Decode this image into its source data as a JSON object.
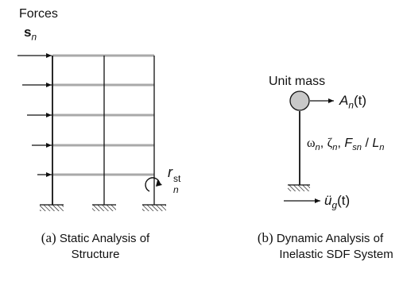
{
  "left": {
    "forces_label": "Forces",
    "force_symbol": "s",
    "force_subscript": "n",
    "response_symbol": "r",
    "response_subscript": "n",
    "response_superscript": "st"
  },
  "right": {
    "unit_mass_label": "Unit mass",
    "response_symbol": "A",
    "response_subscript": "n",
    "response_arg": "(t)",
    "props_label": "ω",
    "props_sub": "n",
    "zeta": "ζ",
    "zeta_sub": "n",
    "F": "F",
    "F_sub": "sn",
    "slash": " / ",
    "L": "L",
    "L_sub": "n",
    "ground_symbol": "ü",
    "ground_sub": "g",
    "ground_arg": "(t)"
  },
  "captions": {
    "a_tag": "(a)",
    "a_line1": "Static Analysis of",
    "a_line2": "Structure",
    "b_tag": "(b)",
    "b_line1": "Dynamic Analysis of",
    "b_line2": "Inelastic SDF System"
  },
  "colors": {
    "ink": "#111111",
    "floor_gray": "#a9a9a9",
    "mass_fill": "#c8c8c8"
  }
}
